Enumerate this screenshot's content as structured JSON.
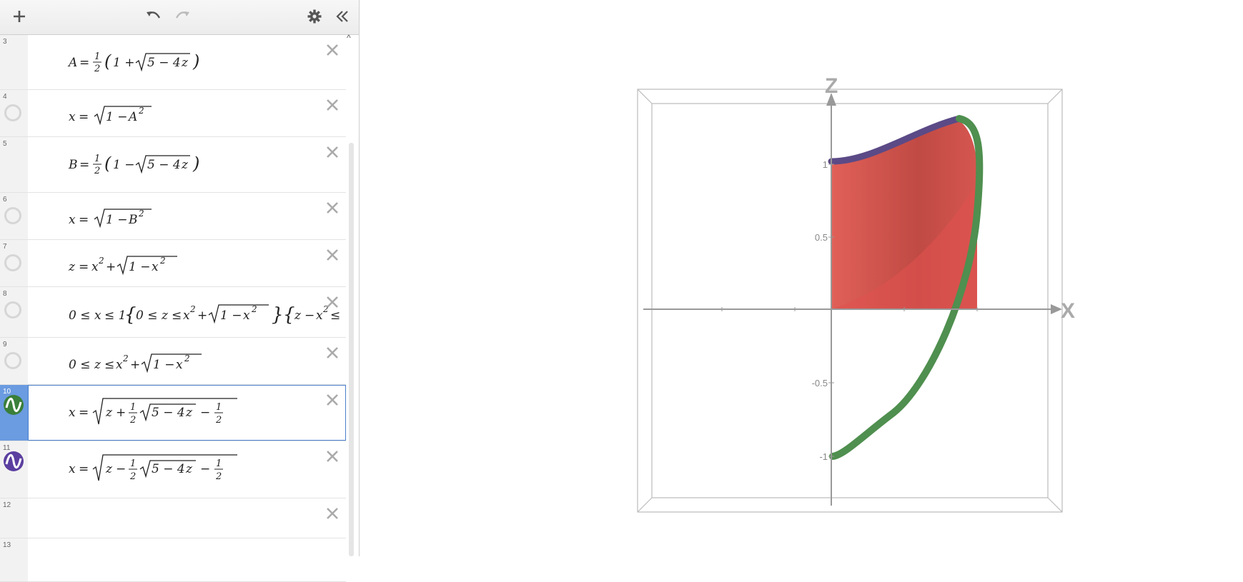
{
  "toolbar": {
    "add_icon": "plus-icon",
    "undo_icon": "undo-icon",
    "redo_icon": "redo-icon",
    "settings_icon": "gear-icon",
    "collapse_icon": "double-chevron-left-icon"
  },
  "expressions": [
    {
      "num": "3",
      "latex": "A = 1/2 (1 + √(5 − 4z))",
      "icon": "none"
    },
    {
      "num": "4",
      "latex": "x = √(1 − A²)",
      "icon": "hidden-circle"
    },
    {
      "num": "5",
      "latex": "B = 1/2 (1 − √(5 − 4z))",
      "icon": "none"
    },
    {
      "num": "6",
      "latex": "x = √(1 − B²)",
      "icon": "hidden-circle"
    },
    {
      "num": "7",
      "latex": "z = x² + √(1 − x²)",
      "icon": "hidden-circle"
    },
    {
      "num": "8",
      "latex": "0 ≤ x ≤ 1 {0 ≤ z ≤ x² + √(1 − x²)} {z − x² ≤ ...",
      "icon": "hidden-circle"
    },
    {
      "num": "9",
      "latex": "0 ≤ z ≤ x² + √(1 − x²)",
      "icon": "hidden-circle"
    },
    {
      "num": "10",
      "latex": "x = √(z + 1/2 √(5 − 4z) − 1/2)",
      "icon": "green-wave",
      "selected": true
    },
    {
      "num": "11",
      "latex": "x = √(z − 1/2 √(5 − 4z) − 1/2)",
      "icon": "purple-wave"
    },
    {
      "num": "12",
      "latex": "",
      "icon": "none"
    },
    {
      "num": "13",
      "latex": "",
      "icon": "none"
    }
  ],
  "graph": {
    "z_axis_label": "Z",
    "x_axis_label": "X",
    "ticks": [
      "1",
      "0.5",
      "-0.5",
      "-1"
    ],
    "colors": {
      "region": "#d9534f",
      "green_curve": "#4f8f4f",
      "purple_curve": "#5b4a86"
    }
  }
}
